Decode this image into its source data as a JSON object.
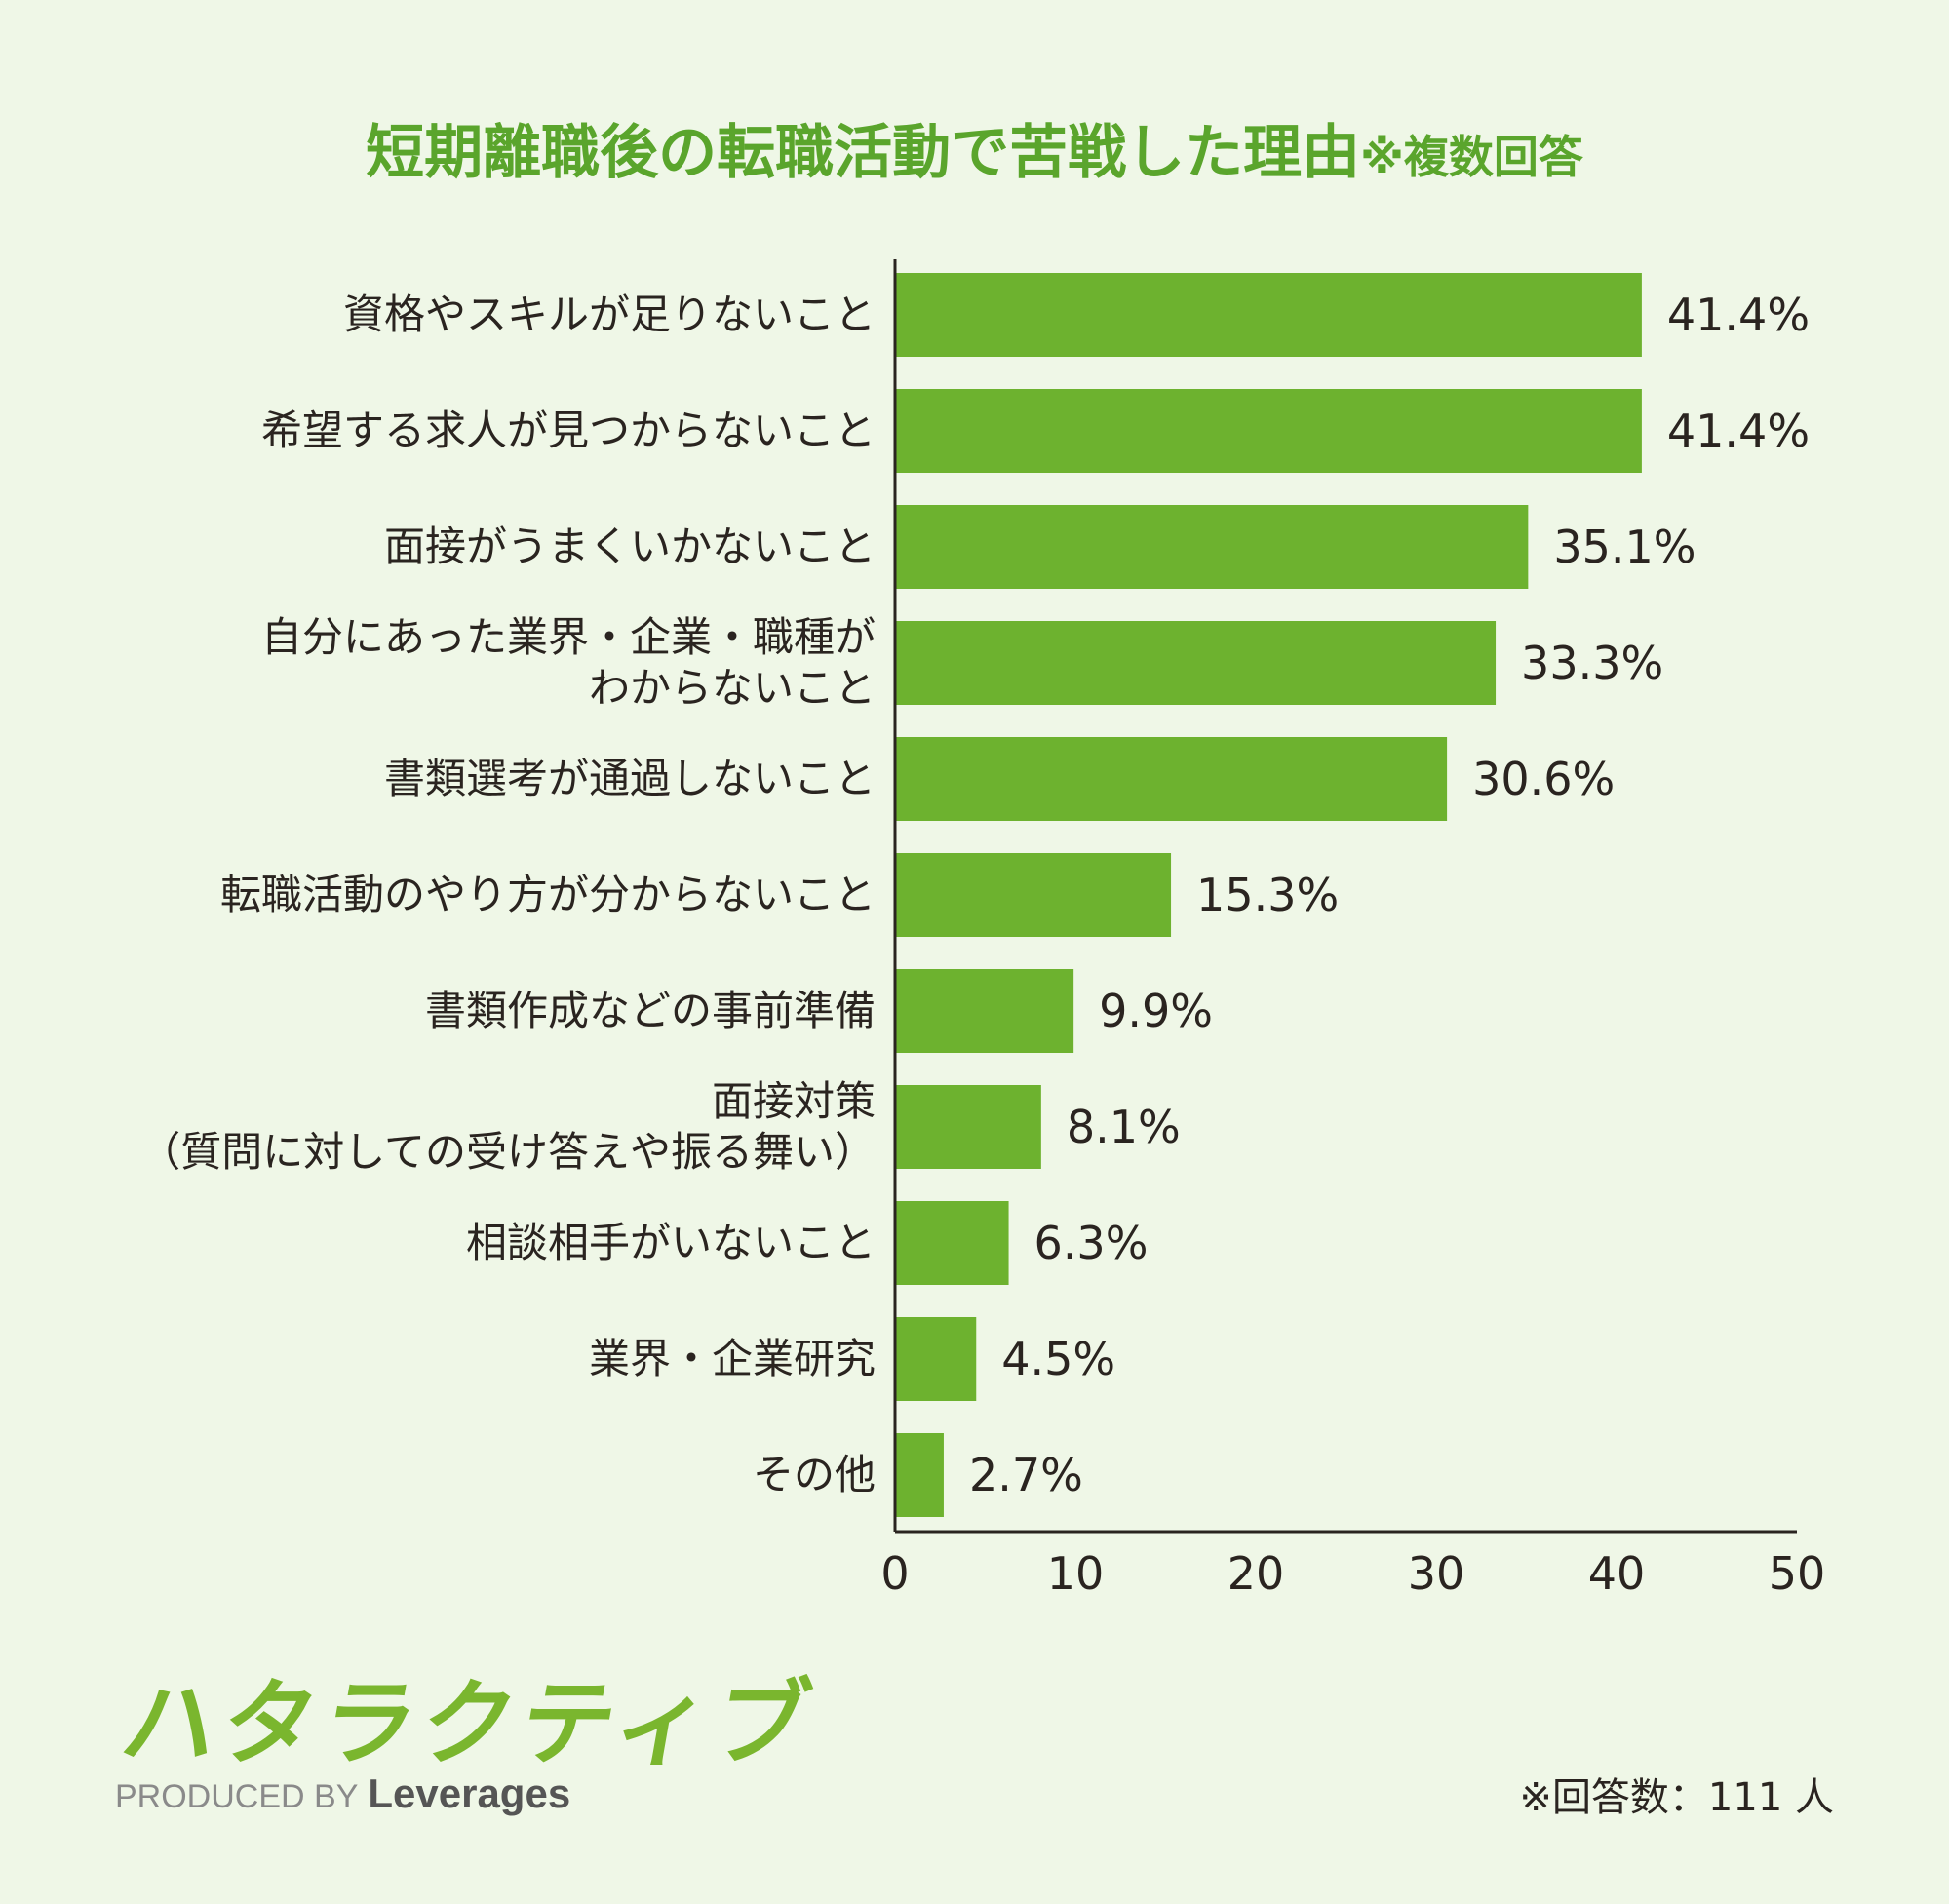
{
  "title": {
    "main": "短期離職後の転職活動で苦戦した理由",
    "note": "※複数回答"
  },
  "chart_data": {
    "type": "bar",
    "orientation": "horizontal",
    "categories": [
      "資格やスキルが足りないこと",
      "希望する求人が見つからないこと",
      "面接がうまくいかないこと",
      "自分にあった業界・企業・職種が\nわからないこと",
      "書類選考が通過しないこと",
      "転職活動のやり方が分からないこと",
      "書類作成などの事前準備",
      "面接対策\n（質問に対しての受け答えや振る舞い）",
      "相談相手がいないこと",
      "業界・企業研究",
      "その他"
    ],
    "values": [
      41.4,
      41.4,
      35.1,
      33.3,
      30.6,
      15.3,
      9.9,
      8.1,
      6.3,
      4.5,
      2.7
    ],
    "value_labels": [
      "41.4%",
      "41.4%",
      "35.1%",
      "33.3%",
      "30.6%",
      "15.3%",
      "9.9%",
      "8.1%",
      "6.3%",
      "4.5%",
      "2.7%"
    ],
    "xlim": [
      0,
      50
    ],
    "x_ticks": [
      0,
      10,
      20,
      30,
      40,
      50
    ],
    "grid": false,
    "bar_color": "#6db22f"
  },
  "footer": {
    "logo_text": "ハタラクティブ",
    "produced_by": "PRODUCED BY",
    "brand": "Leverages",
    "respondents": "※回答数：111 人"
  }
}
